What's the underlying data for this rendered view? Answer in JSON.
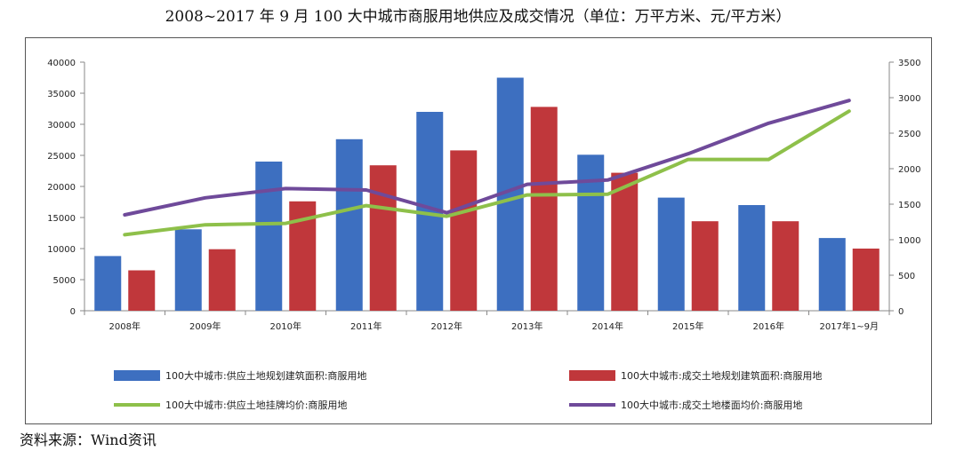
{
  "title": "2008~2017 年 9 月 100 大中城市商服用地供应及成交情况（单位：万平方米、元/平方米）",
  "source": "资料来源：Wind资讯",
  "chart_data": {
    "type": "bar",
    "categories": [
      "2008年",
      "2009年",
      "2010年",
      "2011年",
      "2012年",
      "2013年",
      "2014年",
      "2015年",
      "2016年",
      "2017年1~9月"
    ],
    "left_axis": {
      "min": 0,
      "max": 40000,
      "step": 5000,
      "ticks": [
        "0",
        "5000",
        "10000",
        "15000",
        "20000",
        "25000",
        "30000",
        "35000",
        "40000"
      ]
    },
    "right_axis": {
      "min": 0,
      "max": 3500,
      "step": 500,
      "ticks": [
        "0",
        "500",
        "1000",
        "1500",
        "2000",
        "2500",
        "3000",
        "3500"
      ]
    },
    "bar_series": [
      {
        "name": "100大中城市:供应土地规划建筑面积:商服用地",
        "color": "#3d6fc0",
        "axis": "left",
        "values": [
          8800,
          13100,
          24000,
          27600,
          32000,
          37500,
          25100,
          18200,
          17000,
          11700
        ]
      },
      {
        "name": "100大中城市:成交土地规划建筑面积:商服用地",
        "color": "#c0373b",
        "axis": "left",
        "values": [
          6500,
          9900,
          17600,
          23400,
          25800,
          32800,
          22200,
          14400,
          14400,
          10000
        ]
      }
    ],
    "line_series": [
      {
        "name": "100大中城市:供应土地挂牌均价:商服用地",
        "color": "#8ec04a",
        "axis": "right",
        "values": [
          1070,
          1210,
          1230,
          1480,
          1330,
          1630,
          1640,
          2130,
          2130,
          2810
        ]
      },
      {
        "name": "100大中城市:成交土地楼面均价:商服用地",
        "color": "#6f4a9a",
        "axis": "right",
        "values": [
          1350,
          1590,
          1720,
          1700,
          1380,
          1780,
          1840,
          2210,
          2640,
          2960
        ]
      }
    ],
    "legend": [
      {
        "label": "100大中城市:供应土地规划建筑面积:商服用地",
        "kind": "bar",
        "color": "#3d6fc0"
      },
      {
        "label": "100大中城市:成交土地规划建筑面积:商服用地",
        "kind": "bar",
        "color": "#c0373b"
      },
      {
        "label": "100大中城市:供应土地挂牌均价:商服用地",
        "kind": "line",
        "color": "#8ec04a"
      },
      {
        "label": "100大中城市:成交土地楼面均价:商服用地",
        "kind": "line",
        "color": "#6f4a9a"
      }
    ],
    "legend_position": "bottom"
  }
}
